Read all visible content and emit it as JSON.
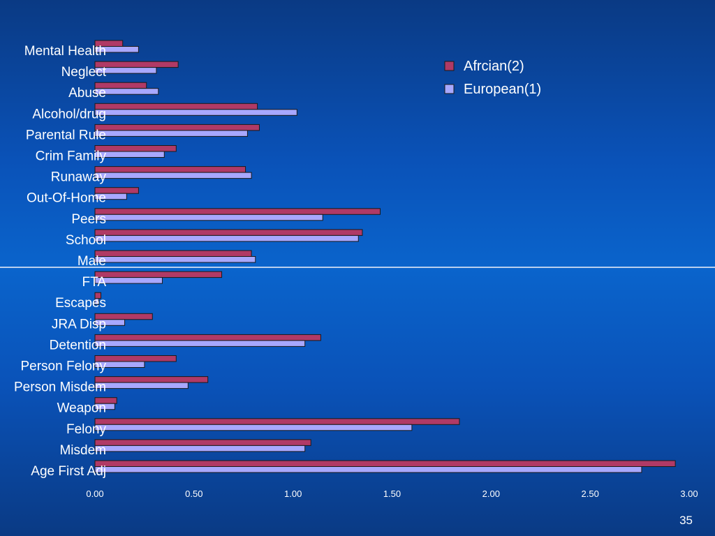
{
  "slide": {
    "page_number": "35"
  },
  "colors": {
    "african": "#b03a66",
    "european": "#a8a8ff",
    "stroke": "#1a1a1a",
    "text": "#ffffff"
  },
  "chart_data": {
    "type": "bar",
    "orientation": "horizontal",
    "categories": [
      "Mental Health",
      "Neglect",
      "Abuse",
      "Alcohol/drug",
      "Parental Rule",
      "Crim Family",
      "Runaway",
      "Out-Of-Home",
      "Peers",
      "School",
      "Male",
      "FTA",
      "Escapes",
      "JRA Disp",
      "Detention",
      "Person Felony",
      "Person Misdem",
      "Weapon",
      "Felony",
      "Misdem",
      "Age First Adj"
    ],
    "series": [
      {
        "name": "Afrcian(2)",
        "color": "#b03a66",
        "values": [
          0.14,
          0.42,
          0.26,
          0.82,
          0.83,
          0.41,
          0.76,
          0.22,
          1.44,
          1.35,
          0.79,
          0.64,
          0.03,
          0.29,
          1.14,
          0.41,
          0.57,
          0.11,
          1.84,
          1.09,
          2.93
        ]
      },
      {
        "name": "European(1)",
        "color": "#a8a8ff",
        "values": [
          0.22,
          0.31,
          0.32,
          1.02,
          0.77,
          0.35,
          0.79,
          0.16,
          1.15,
          1.33,
          0.81,
          0.34,
          0.02,
          0.15,
          1.06,
          0.25,
          0.47,
          0.1,
          1.6,
          1.06,
          2.76
        ]
      }
    ],
    "xlim": [
      0,
      3
    ],
    "xticks": [
      "0.00",
      "0.50",
      "1.00",
      "1.50",
      "2.00",
      "2.50",
      "3.00"
    ],
    "legend_position": "top-right",
    "grid": false
  }
}
